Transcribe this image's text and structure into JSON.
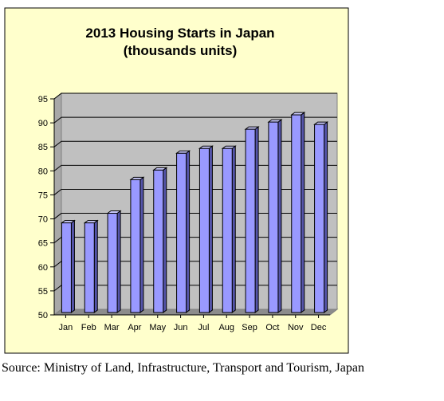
{
  "chart_data": {
    "type": "bar",
    "title_line1": "2013 Housing Starts in Japan",
    "title_line2": "(thousands units)",
    "categories": [
      "Jan",
      "Feb",
      "Mar",
      "Apr",
      "May",
      "Jun",
      "Jul",
      "Aug",
      "Sep",
      "Oct",
      "Nov",
      "Dec"
    ],
    "values": [
      69,
      69,
      71,
      78,
      80,
      83.5,
      84.5,
      84.5,
      88.5,
      90,
      91.5,
      89.5
    ],
    "ylim": [
      50,
      95
    ],
    "yticks": [
      50,
      55,
      60,
      65,
      70,
      75,
      80,
      85,
      90,
      95
    ],
    "grid": true,
    "colors": {
      "frame_bg": "#ffffcc",
      "plot_bg": "#c0c0c0",
      "bar_front": "#9999ff",
      "bar_side": "#5555aa",
      "bar_top": "#ccccff"
    }
  },
  "source": "Source: Ministry of Land, Infrastructure, Transport and Tourism, Japan"
}
